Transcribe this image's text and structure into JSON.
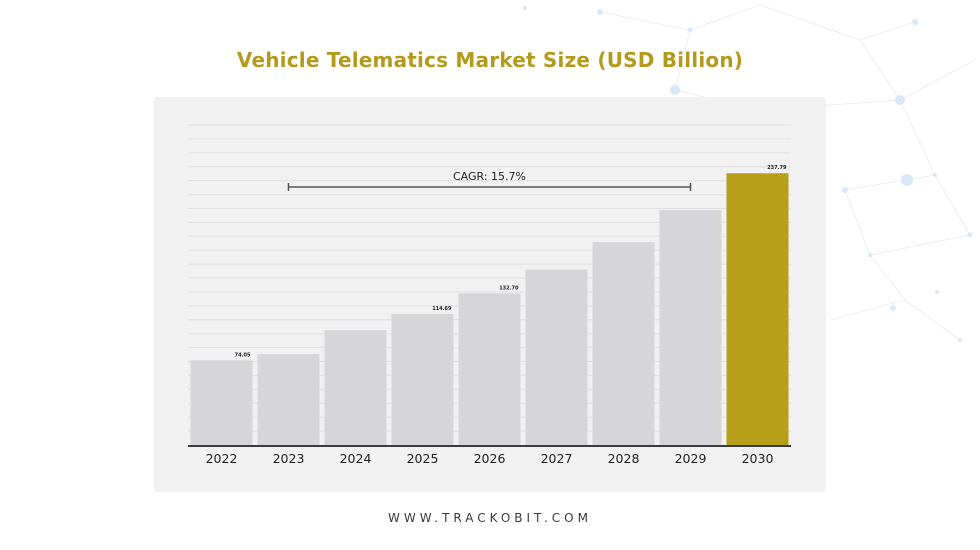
{
  "page": {
    "title": "Vehicle Telematics Market Size (USD Billion)",
    "footer": "WWW.TRACKOBIT.COM"
  },
  "colors": {
    "title": "#b29a1c",
    "bar": "#d6d6d9",
    "highlight_bar": "#b89f1a",
    "panel": "#f1f1f2",
    "axis": "#3a3a3a"
  },
  "chart_data": {
    "type": "bar",
    "title": "Vehicle Telematics Market Size (USD Billion)",
    "categories": [
      "2022",
      "2023",
      "2024",
      "2025",
      "2026",
      "2027",
      "2028",
      "2029",
      "2030"
    ],
    "values": [
      74.05,
      79.5,
      100.5,
      114.69,
      132.7,
      153.5,
      177.5,
      205.5,
      237.79
    ],
    "data_labels": [
      "74.05",
      "",
      "",
      "114.69",
      "132.70",
      "",
      "",
      "",
      "237.79"
    ],
    "highlight_category": "2030",
    "annotation": {
      "text": "CAGR: 15.7%",
      "from": "2023",
      "to": "2029"
    },
    "ylim": [
      0,
      280
    ],
    "grid": true,
    "xlabel": "",
    "ylabel": ""
  }
}
